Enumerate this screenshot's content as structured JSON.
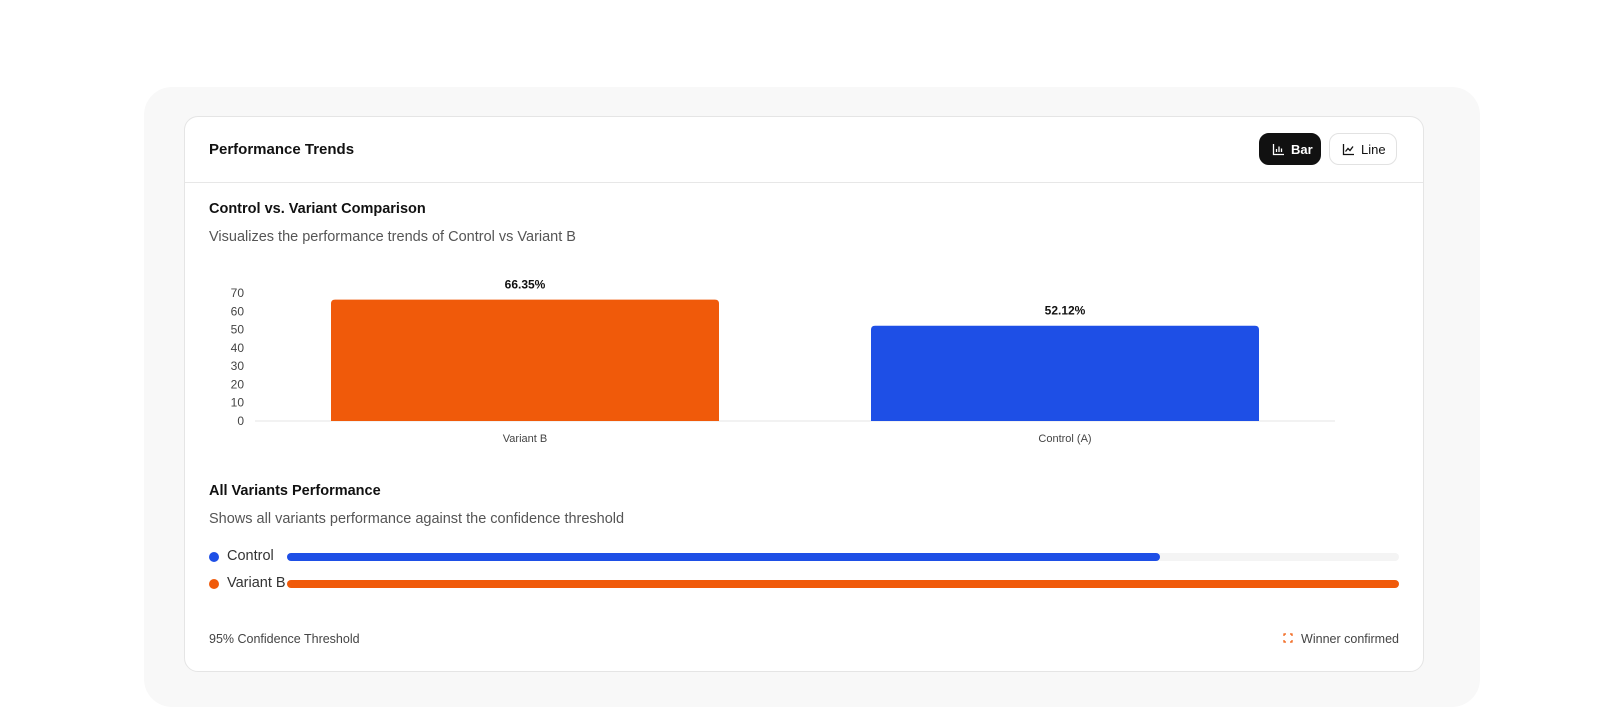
{
  "header": {
    "title": "Performance Trends",
    "bar_label": "Bar",
    "line_label": "Line"
  },
  "comparison": {
    "title": "Control vs. Variant Comparison",
    "description": "Visualizes the performance trends of Control vs Variant B"
  },
  "all_variants": {
    "title": "All Variants Performance",
    "description": "Shows all variants performance against the confidence threshold",
    "rows": [
      {
        "label": "Control",
        "color": "#1e4fe6",
        "progress": 0.785
      },
      {
        "label": "Variant B",
        "color": "#f05a0a",
        "progress": 1.0
      }
    ]
  },
  "footer": {
    "threshold_label": "95% Confidence Threshold",
    "status_label": "Winner confirmed"
  },
  "icons": {
    "bar": "bar-chart-icon",
    "line": "line-chart-icon",
    "status": "target-icon"
  },
  "colors": {
    "variant_b": "#f05a0a",
    "control": "#1e4fe6"
  },
  "chart_data": {
    "type": "bar",
    "categories": [
      "Variant B",
      "Control (A)"
    ],
    "values": [
      66.35,
      52.12
    ],
    "data_labels": [
      "66.35%",
      "52.12%"
    ],
    "colors": [
      "#f05a0a",
      "#1e4fe6"
    ],
    "yticks": [
      "0",
      "10",
      "20",
      "30",
      "40",
      "50",
      "60",
      "70"
    ],
    "ylim": [
      0,
      70
    ],
    "grid": false
  }
}
